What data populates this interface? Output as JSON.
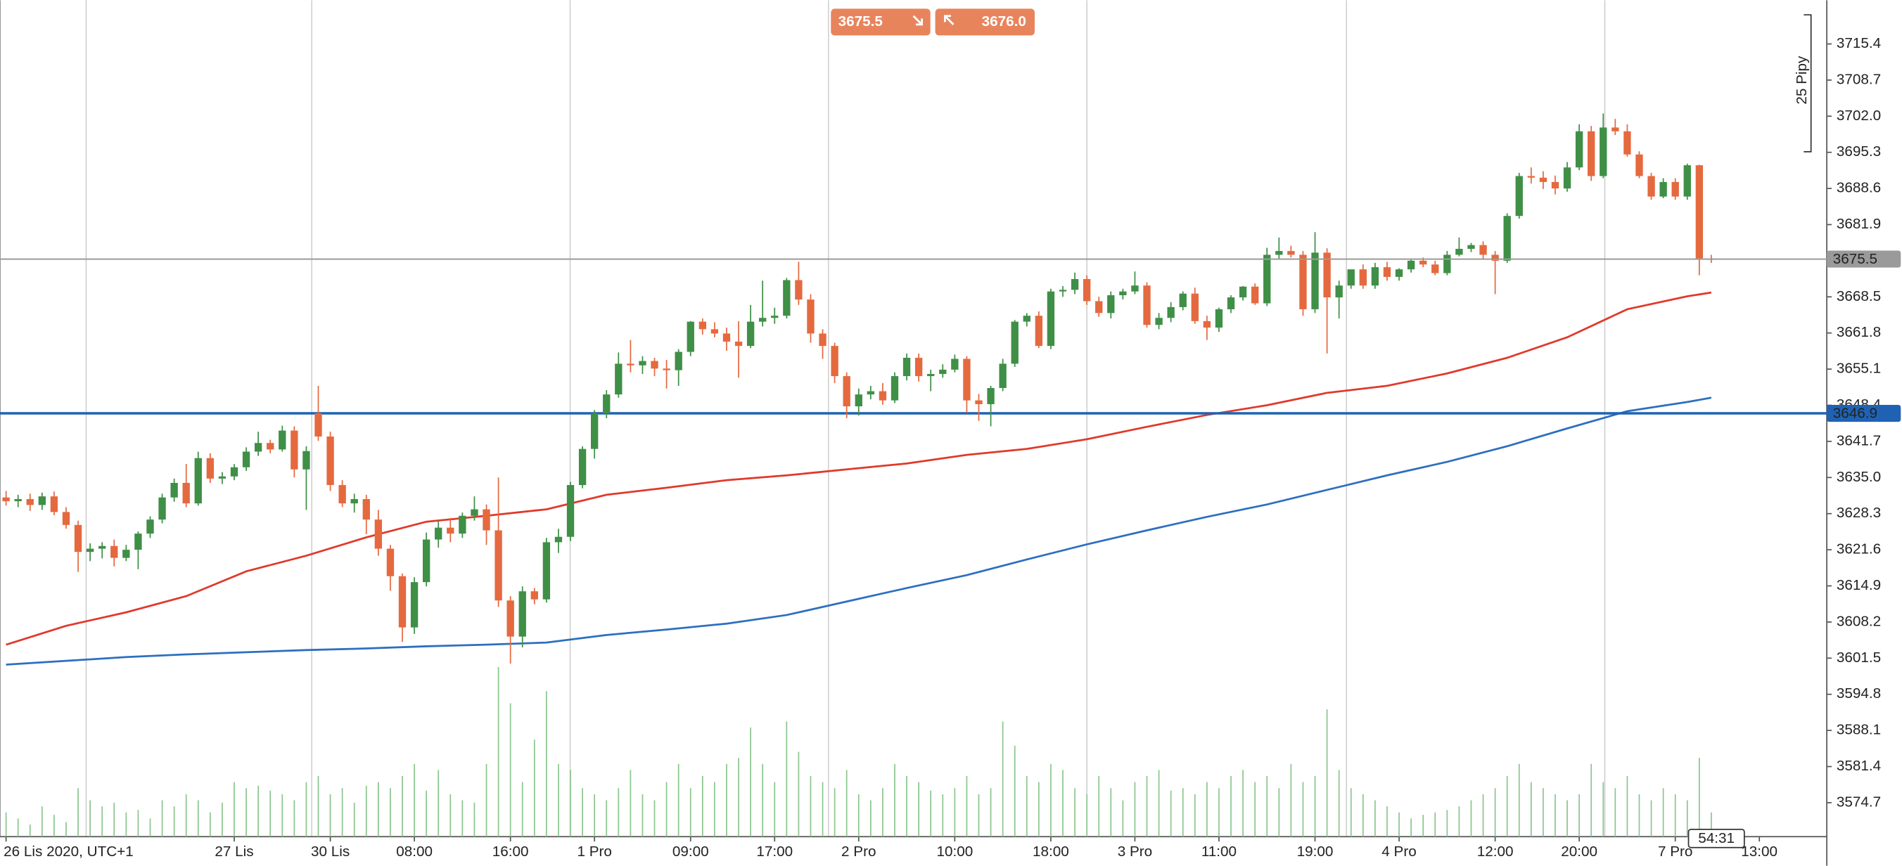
{
  "chart_data": {
    "type": "candlestick",
    "up_color": "#3f8f47",
    "down_color": "#e5693f",
    "volume_color": "#8cc58f",
    "categories": [
      "26 Lis 2020, UTC+1",
      null,
      null,
      null,
      null,
      null,
      null,
      null,
      null,
      null,
      null,
      null,
      null,
      null,
      null,
      null,
      null,
      null,
      null,
      "27 Lis",
      null,
      null,
      null,
      null,
      null,
      null,
      null,
      "30 Lis",
      null,
      null,
      null,
      null,
      null,
      null,
      "08:00",
      null,
      null,
      null,
      null,
      null,
      null,
      null,
      "16:00",
      null,
      null,
      null,
      null,
      null,
      null,
      "1 Pro",
      null,
      null,
      null,
      null,
      null,
      null,
      null,
      "09:00",
      null,
      null,
      null,
      null,
      null,
      null,
      "17:00",
      null,
      null,
      null,
      null,
      null,
      null,
      "2 Pro",
      null,
      null,
      null,
      null,
      null,
      null,
      null,
      "10:00",
      null,
      null,
      null,
      null,
      null,
      null,
      null,
      "18:00",
      null,
      null,
      null,
      null,
      null,
      null,
      "3 Pro",
      null,
      null,
      null,
      null,
      null,
      null,
      "11:00",
      null,
      null,
      null,
      null,
      null,
      null,
      null,
      "19:00",
      null,
      null,
      null,
      null,
      null,
      null,
      "4 Pro",
      null,
      null,
      null,
      null,
      null,
      null,
      null,
      "12:00",
      null,
      null,
      null,
      null,
      null,
      null,
      "20:00",
      null,
      null,
      null,
      null,
      null,
      null,
      null,
      "7 Pro",
      null,
      null,
      null,
      null,
      null,
      null,
      "13:00"
    ],
    "open": [
      3631.3,
      3630.6,
      3631.0,
      3629.9,
      3631.5,
      3628.6,
      3626.2,
      3621.2,
      3621.8,
      3622.3,
      3620.1,
      3621.6,
      3624.6,
      3627.2,
      3631.3,
      3634.0,
      3630.2,
      3638.6,
      3634.8,
      3635.2,
      3636.9,
      3639.8,
      3641.4,
      3640.2,
      3643.7,
      3636.5,
      3646.9,
      3642.6,
      3633.6,
      3630.2,
      3631.0,
      3627.2,
      3621.8,
      3616.7,
      3607.2,
      3615.6,
      3623.5,
      3625.7,
      3624.6,
      3627.9,
      3629.1,
      3625.2,
      3612.2,
      3605.5,
      3613.9,
      3612.4,
      3623.0,
      3624.0,
      3633.6,
      3640.3,
      3646.9,
      3650.4,
      3656.1,
      3655.8,
      3656.6,
      3655.2,
      3654.9,
      3658.3,
      3663.9,
      3662.5,
      3661.7,
      3660.2,
      3659.4,
      3663.9,
      3664.6,
      3665.0,
      3671.6,
      3668.0,
      3661.7,
      3659.4,
      3653.8,
      3648.2,
      3650.4,
      3651.0,
      3649.3,
      3653.8,
      3657.2,
      3653.8,
      3654.2,
      3655.0,
      3657.0,
      3649.3,
      3648.6,
      3651.6,
      3656.1,
      3663.9,
      3665.0,
      3659.4,
      3669.5,
      3669.8,
      3671.8,
      3667.7,
      3665.5,
      3668.8,
      3669.5,
      3670.6,
      3663.3,
      3664.6,
      3666.6,
      3669.1,
      3664.0,
      3662.8,
      3666.2,
      3668.4,
      3670.4,
      3667.3,
      3676.3,
      3677.0,
      3676.3,
      3666.2,
      3676.7,
      3668.4,
      3670.6,
      3673.6,
      3670.6,
      3674.0,
      3672.2,
      3673.6,
      3675.2,
      3674.5,
      3672.9,
      3676.3,
      3677.4,
      3678.1,
      3676.3,
      3675.2,
      3683.5,
      3690.9,
      3690.6,
      3689.8,
      3688.6,
      3692.5,
      3699.2,
      3690.9,
      3699.9,
      3699.2,
      3694.9,
      3690.9,
      3687.1,
      3689.8,
      3687.1,
      3692.9,
      3675.6,
      null,
      null,
      null,
      null
    ],
    "high": [
      3632.5,
      3631.8,
      3632.0,
      3632.2,
      3632.4,
      3629.5,
      3627.0,
      3622.8,
      3623.0,
      3623.5,
      3622.5,
      3625.0,
      3627.8,
      3632.0,
      3634.8,
      3637.5,
      3639.8,
      3639.5,
      3636.0,
      3637.5,
      3640.6,
      3643.5,
      3642.0,
      3644.6,
      3644.5,
      3640.8,
      3652.0,
      3643.5,
      3634.5,
      3632.0,
      3631.8,
      3629.0,
      3622.5,
      3617.2,
      3616.5,
      3624.8,
      3627.0,
      3627.5,
      3628.5,
      3631.5,
      3630.0,
      3635.0,
      3613.0,
      3614.8,
      3614.5,
      3623.8,
      3625.5,
      3634.2,
      3640.8,
      3647.5,
      3651.2,
      3658.2,
      3660.5,
      3657.5,
      3657.2,
      3656.8,
      3658.8,
      3664.0,
      3664.5,
      3663.8,
      3662.8,
      3664.0,
      3667.0,
      3671.5,
      3666.5,
      3672.0,
      3675.0,
      3669.0,
      3662.5,
      3660.0,
      3654.5,
      3651.5,
      3652.0,
      3652.5,
      3654.5,
      3658.0,
      3658.0,
      3655.0,
      3656.0,
      3657.8,
      3657.5,
      3650.5,
      3652.0,
      3657.0,
      3664.2,
      3665.5,
      3665.8,
      3670.0,
      3670.5,
      3673.0,
      3672.5,
      3668.5,
      3669.5,
      3670.0,
      3673.2,
      3671.2,
      3665.5,
      3667.5,
      3669.5,
      3670.2,
      3665.0,
      3666.5,
      3668.8,
      3670.5,
      3671.0,
      3677.6,
      3679.5,
      3678.0,
      3677.0,
      3680.5,
      3677.5,
      3671.5,
      3673.5,
      3674.5,
      3674.8,
      3675.0,
      3673.8,
      3675.5,
      3675.8,
      3675.2,
      3677.0,
      3679.5,
      3678.5,
      3678.8,
      3677.0,
      3684.0,
      3691.5,
      3692.5,
      3691.8,
      3691.0,
      3693.5,
      3700.5,
      3700.2,
      3702.5,
      3701.5,
      3700.5,
      3695.5,
      3691.5,
      3690.5,
      3690.5,
      3693.2,
      3693.0,
      3676.3,
      null,
      null,
      null,
      null
    ],
    "low": [
      3629.8,
      3629.5,
      3628.8,
      3629.0,
      3628.0,
      3625.5,
      3617.5,
      3619.5,
      3620.0,
      3618.5,
      3619.5,
      3618.0,
      3623.8,
      3626.5,
      3630.5,
      3629.5,
      3629.8,
      3634.0,
      3633.8,
      3634.5,
      3636.2,
      3639.0,
      3639.5,
      3639.8,
      3635.0,
      3629.0,
      3641.8,
      3632.5,
      3629.5,
      3628.5,
      3624.5,
      3620.5,
      3614.0,
      3604.5,
      3606.0,
      3614.8,
      3622.0,
      3623.0,
      3623.8,
      3627.0,
      3622.5,
      3611.0,
      3600.5,
      3603.5,
      3611.5,
      3611.8,
      3621.0,
      3623.2,
      3633.0,
      3638.5,
      3646.0,
      3649.8,
      3654.5,
      3654.2,
      3653.8,
      3651.5,
      3652.0,
      3657.5,
      3661.5,
      3661.0,
      3658.5,
      3653.5,
      3659.0,
      3663.0,
      3663.5,
      3664.5,
      3667.0,
      3660.0,
      3657.0,
      3652.5,
      3646.0,
      3646.5,
      3649.5,
      3648.5,
      3648.8,
      3653.0,
      3652.8,
      3651.0,
      3653.5,
      3654.5,
      3647.0,
      3645.5,
      3644.5,
      3651.0,
      3655.5,
      3663.0,
      3659.0,
      3658.8,
      3668.5,
      3669.0,
      3667.0,
      3664.8,
      3664.5,
      3668.0,
      3669.0,
      3662.8,
      3662.5,
      3663.8,
      3666.0,
      3663.5,
      3660.5,
      3662.0,
      3665.5,
      3667.8,
      3667.0,
      3666.8,
      3675.5,
      3675.8,
      3665.0,
      3665.5,
      3658.0,
      3664.5,
      3670.0,
      3670.0,
      3670.0,
      3671.5,
      3671.5,
      3673.0,
      3674.0,
      3672.5,
      3672.5,
      3676.0,
      3676.8,
      3675.5,
      3669.0,
      3674.8,
      3683.0,
      3689.5,
      3688.5,
      3687.5,
      3688.0,
      3692.0,
      3690.0,
      3690.5,
      3698.5,
      3694.5,
      3690.5,
      3686.5,
      3686.8,
      3686.5,
      3686.5,
      3672.5,
      3674.8,
      null,
      null,
      null,
      null
    ],
    "close": [
      3630.6,
      3631.0,
      3629.9,
      3631.5,
      3628.6,
      3626.2,
      3621.2,
      3621.8,
      3622.3,
      3620.1,
      3621.6,
      3624.6,
      3627.2,
      3631.3,
      3634.0,
      3630.2,
      3638.6,
      3634.8,
      3635.2,
      3636.9,
      3639.8,
      3641.4,
      3640.2,
      3643.7,
      3636.5,
      3639.9,
      3642.6,
      3633.6,
      3630.2,
      3631.0,
      3627.2,
      3621.8,
      3616.7,
      3607.2,
      3615.6,
      3623.5,
      3625.7,
      3624.6,
      3627.9,
      3629.1,
      3625.2,
      3612.2,
      3605.5,
      3613.9,
      3612.4,
      3623.0,
      3624.0,
      3633.6,
      3640.3,
      3646.9,
      3650.4,
      3656.1,
      3655.8,
      3656.6,
      3655.2,
      3654.9,
      3658.3,
      3663.9,
      3662.5,
      3661.7,
      3660.2,
      3659.4,
      3663.9,
      3664.6,
      3665.0,
      3671.6,
      3668.0,
      3661.7,
      3659.4,
      3653.8,
      3648.2,
      3650.4,
      3651.0,
      3649.3,
      3653.8,
      3657.2,
      3653.8,
      3654.2,
      3655.0,
      3657.0,
      3649.3,
      3648.6,
      3651.6,
      3656.1,
      3663.9,
      3665.0,
      3659.4,
      3669.5,
      3669.8,
      3671.8,
      3667.7,
      3665.5,
      3668.8,
      3669.5,
      3670.6,
      3663.3,
      3664.6,
      3666.6,
      3669.1,
      3664.0,
      3662.8,
      3666.2,
      3668.4,
      3670.4,
      3667.3,
      3676.3,
      3677.0,
      3676.3,
      3666.2,
      3676.7,
      3668.4,
      3670.6,
      3673.6,
      3670.6,
      3674.0,
      3672.2,
      3673.6,
      3675.2,
      3674.5,
      3672.9,
      3676.3,
      3677.4,
      3678.1,
      3676.3,
      3675.2,
      3683.5,
      3690.9,
      3690.6,
      3689.8,
      3688.6,
      3692.5,
      3699.2,
      3690.9,
      3699.9,
      3699.2,
      3694.9,
      3690.9,
      3687.1,
      3689.8,
      3687.1,
      3692.9,
      3675.6,
      3675.5,
      null,
      null,
      null,
      null
    ],
    "volume": [
      20,
      15,
      10,
      25,
      18,
      12,
      40,
      30,
      25,
      28,
      20,
      22,
      15,
      30,
      25,
      35,
      30,
      20,
      28,
      45,
      40,
      42,
      38,
      35,
      30,
      45,
      50,
      35,
      40,
      28,
      42,
      45,
      40,
      50,
      60,
      38,
      55,
      35,
      30,
      28,
      60,
      140,
      110,
      45,
      80,
      120,
      60,
      55,
      40,
      35,
      30,
      40,
      55,
      35,
      30,
      45,
      60,
      40,
      50,
      45,
      60,
      65,
      90,
      60,
      45,
      95,
      70,
      50,
      45,
      40,
      55,
      35,
      30,
      40,
      60,
      50,
      45,
      38,
      35,
      40,
      50,
      35,
      40,
      95,
      75,
      50,
      45,
      60,
      55,
      40,
      35,
      50,
      40,
      30,
      45,
      50,
      55,
      38,
      40,
      35,
      45,
      40,
      50,
      55,
      45,
      50,
      40,
      60,
      45,
      50,
      105,
      55,
      40,
      35,
      30,
      25,
      20,
      15,
      18,
      20,
      22,
      25,
      30,
      35,
      40,
      50,
      60,
      45,
      40,
      35,
      30,
      35,
      60,
      45,
      40,
      50,
      35,
      30,
      40,
      35,
      30,
      65,
      20,
      null,
      null,
      null,
      null
    ],
    "lines": [
      {
        "color": "#e0392b",
        "x": [
          0,
          5,
          10,
          15,
          20,
          25,
          30,
          35,
          40,
          45,
          50,
          55,
          60,
          65,
          70,
          75,
          80,
          85,
          90,
          95,
          100,
          105,
          110,
          115,
          120,
          125,
          130,
          135,
          140,
          142
        ],
        "values": [
          3604.0,
          3607.5,
          3610.0,
          3613.0,
          3617.6,
          3620.5,
          3623.9,
          3626.8,
          3627.9,
          3629.1,
          3631.8,
          3633.1,
          3634.5,
          3635.4,
          3636.5,
          3637.6,
          3639.2,
          3640.3,
          3642.1,
          3644.4,
          3646.6,
          3648.4,
          3650.7,
          3652.0,
          3654.3,
          3657.2,
          3661.0,
          3666.2,
          3668.6,
          3669.3
        ]
      },
      {
        "color": "#2d6fbf",
        "x": [
          0,
          5,
          10,
          15,
          20,
          25,
          30,
          35,
          40,
          45,
          50,
          55,
          60,
          65,
          70,
          75,
          80,
          85,
          90,
          95,
          100,
          105,
          110,
          115,
          120,
          125,
          130,
          135,
          140,
          142
        ],
        "values": [
          3600.3,
          3601.0,
          3601.7,
          3602.2,
          3602.6,
          3603.0,
          3603.3,
          3603.7,
          3604.0,
          3604.4,
          3605.8,
          3606.8,
          3607.9,
          3609.5,
          3612.0,
          3614.5,
          3616.9,
          3619.8,
          3622.6,
          3625.2,
          3627.7,
          3630.0,
          3632.7,
          3635.4,
          3637.9,
          3640.8,
          3644.1,
          3647.3,
          3649.0,
          3649.8
        ]
      }
    ],
    "ylim": [
      3568.4,
      3723.5
    ],
    "yticks": [
      3715.4,
      3708.7,
      {
        "value": 3702,
        "label": "3702.0"
      },
      3695.3,
      3688.6,
      3681.9,
      3668.5,
      3661.8,
      3655.1,
      3648.4,
      3641.7,
      {
        "value": 3635,
        "label": "3635.0"
      },
      3628.3,
      3621.6,
      3614.9,
      3608.2,
      3601.5,
      3594.8,
      3588.1,
      3581.4,
      3574.7
    ],
    "current_price": {
      "value": 3675.5,
      "label": "3675.5"
    },
    "level": {
      "value": 3646.9,
      "label": "3646.9",
      "color": "#1f62b3"
    },
    "scale_label": "25 Pipy",
    "countdown": "54:31"
  },
  "toolbar": {
    "sell": "3675.5",
    "buy": "3676.0"
  }
}
